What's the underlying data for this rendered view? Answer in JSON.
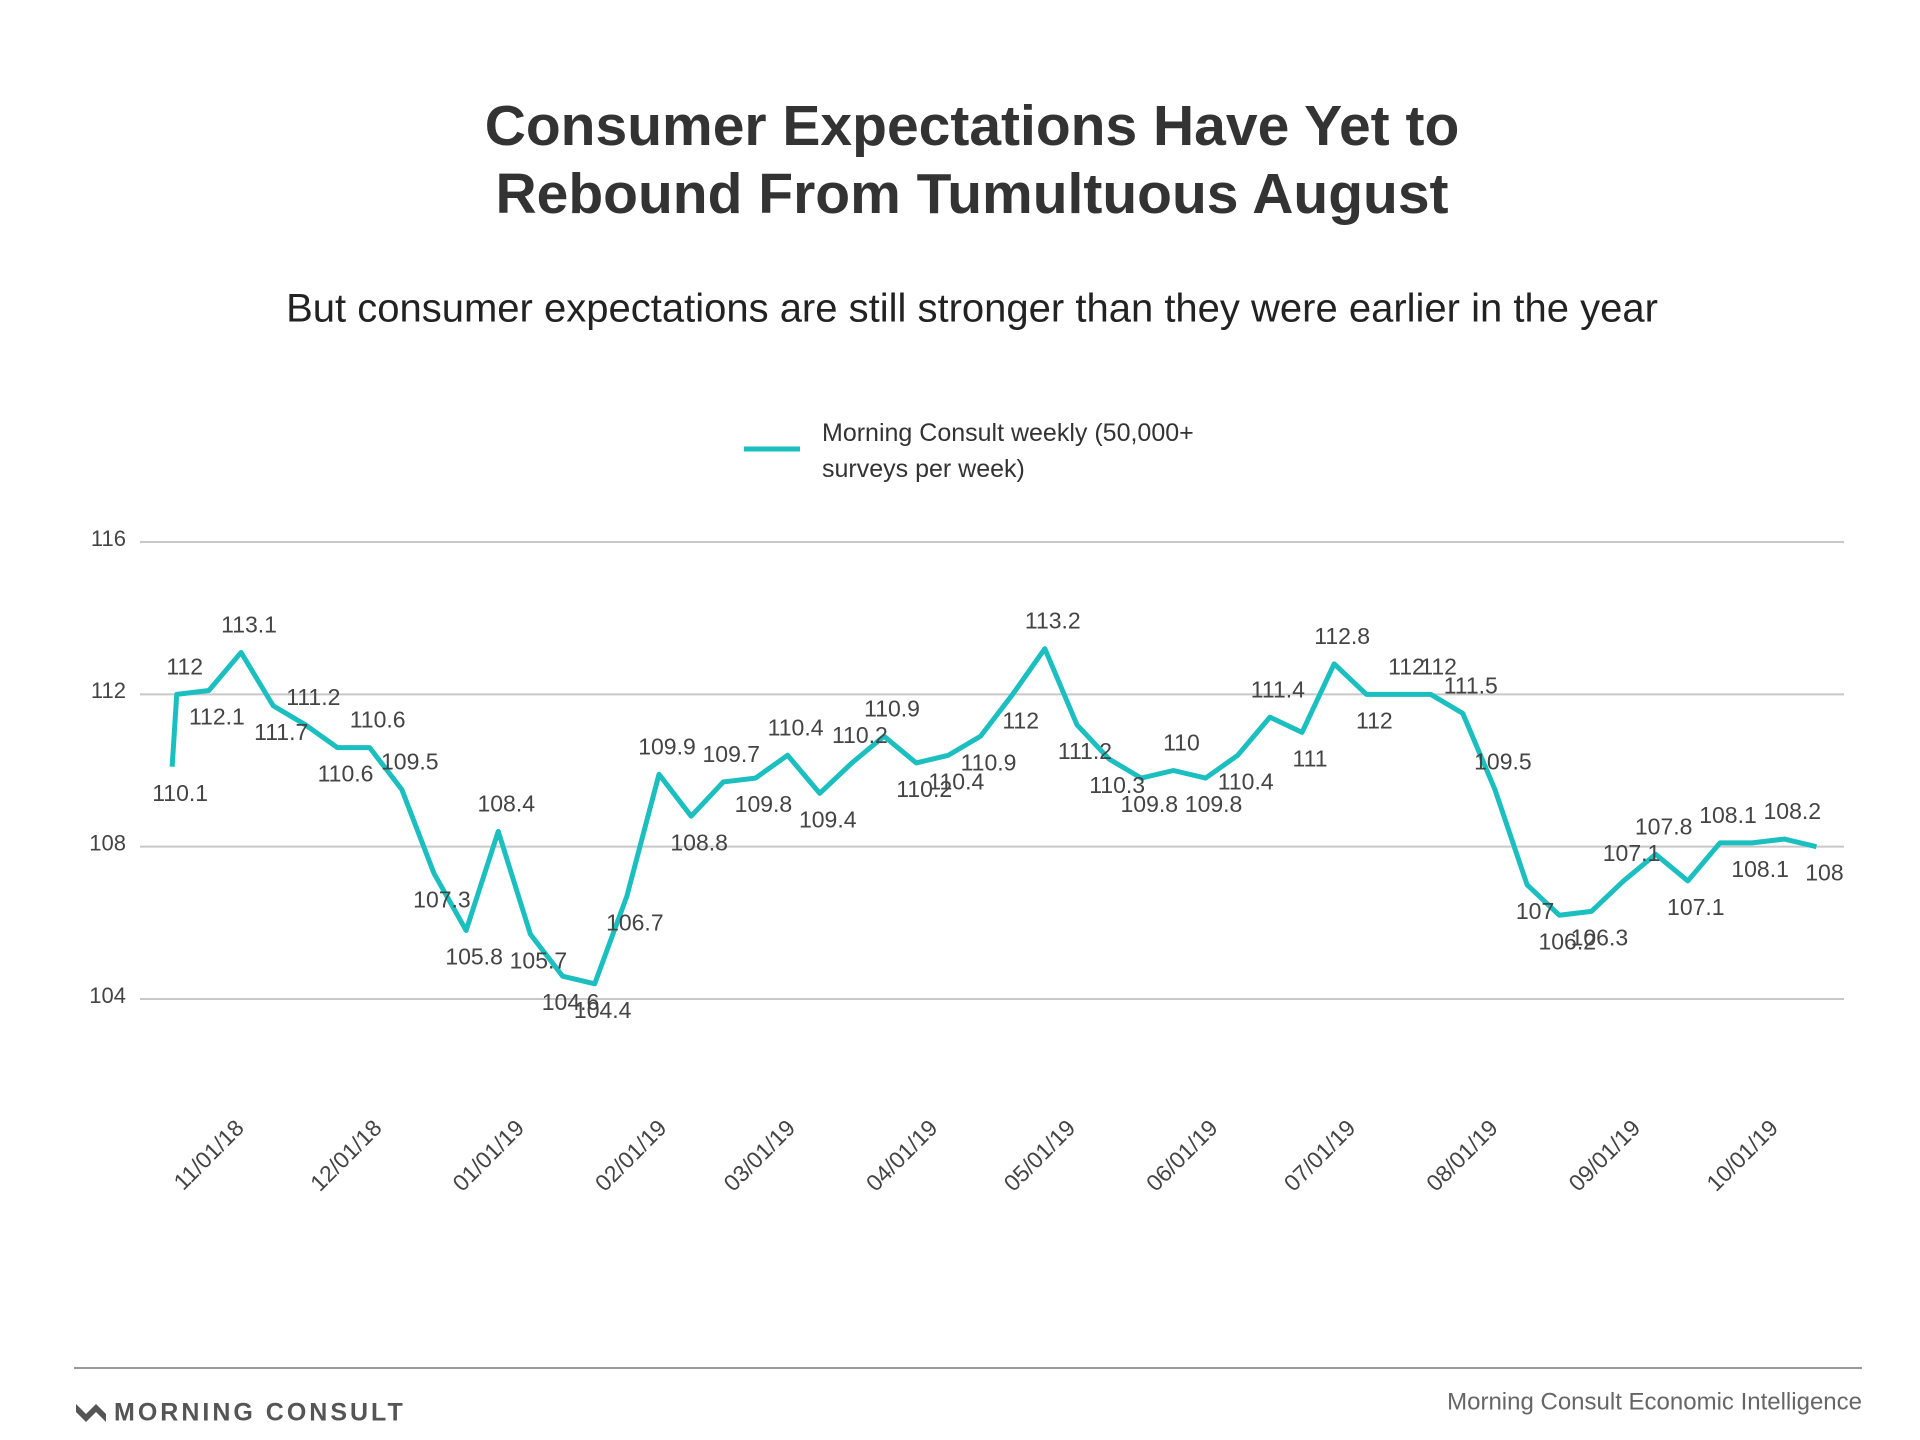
{
  "chart_data": {
    "type": "line",
    "title": [
      "Consumer Expectations Have Yet to",
      "Rebound From Tumultuous August"
    ],
    "subtitle": "But consumer expectations are still stronger than they were earlier in the year",
    "x": [
      "10/17/18",
      "10/18/18",
      "10/25/18",
      "11/01/18",
      "11/08/18",
      "11/15/18",
      "11/22/18",
      "11/29/18",
      "12/06/18",
      "12/13/18",
      "12/20/18",
      "12/27/18",
      "01/03/19",
      "01/10/19",
      "01/17/19",
      "01/24/19",
      "01/31/19",
      "02/07/19",
      "02/14/19",
      "02/21/19",
      "02/28/19",
      "03/07/19",
      "03/14/19",
      "03/21/19",
      "03/28/19",
      "04/04/19",
      "04/11/19",
      "04/18/19",
      "04/25/19",
      "05/02/19",
      "05/09/19",
      "05/16/19",
      "05/23/19",
      "05/30/19",
      "06/06/19",
      "06/13/19",
      "06/20/19",
      "06/27/19",
      "07/04/19",
      "07/11/19",
      "07/18/19",
      "07/25/19",
      "08/01/19",
      "08/08/19",
      "08/15/19",
      "08/22/19",
      "08/29/19",
      "09/05/19",
      "09/12/19",
      "09/19/19",
      "09/26/19",
      "10/03/19",
      "10/10/19"
    ],
    "series": [
      {
        "name": "Morning Consult weekly (50,000+ surveys per week)",
        "color": "#1bbfbf",
        "values": [
          110.1,
          112,
          112.1,
          113.1,
          111.7,
          111.2,
          110.6,
          110.6,
          109.5,
          107.3,
          105.8,
          108.4,
          105.7,
          104.6,
          104.4,
          106.7,
          109.9,
          108.8,
          109.7,
          109.8,
          110.4,
          109.4,
          110.2,
          110.9,
          110.2,
          110.4,
          110.9,
          112,
          113.2,
          111.2,
          110.3,
          109.8,
          110,
          109.8,
          110.4,
          111.4,
          111,
          112.8,
          112,
          112,
          112,
          111.5,
          109.5,
          107,
          106.2,
          106.3,
          107.1,
          107.8,
          107.1,
          108.1,
          108.1,
          108.2,
          108
        ]
      }
    ],
    "xlim": [
      "10/10/18",
      "10/16/19"
    ],
    "xticks": [
      "11/01/18",
      "12/01/18",
      "01/01/19",
      "02/01/19",
      "03/01/19",
      "04/01/19",
      "05/01/19",
      "06/01/19",
      "07/01/19",
      "08/01/19",
      "09/01/19",
      "10/01/19"
    ],
    "ylim": [
      104,
      116
    ],
    "yticks": [
      104,
      108,
      112,
      116
    ],
    "grid": true,
    "legend": "top",
    "brand": "MORNING CONSULT",
    "source": "Morning Consult Economic Intelligence"
  }
}
